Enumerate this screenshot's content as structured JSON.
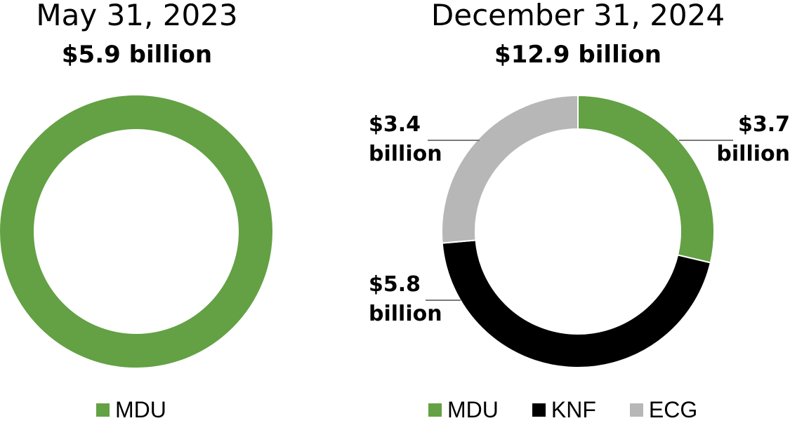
{
  "charts": {
    "left": {
      "title": "May 31, 2023",
      "total": "$5.9 billion",
      "legend": [
        {
          "label": "MDU",
          "color": "#63a144"
        }
      ]
    },
    "right": {
      "title": "December 31, 2024",
      "total": "$12.9 billion",
      "callouts": {
        "ecg": {
          "line1": "$3.4",
          "line2": "billion"
        },
        "mdu": {
          "line1": "$3.7",
          "line2": "billion"
        },
        "knf": {
          "line1": "$5.8",
          "line2": "billion"
        }
      },
      "legend": [
        {
          "label": "MDU",
          "color": "#63a144"
        },
        {
          "label": "KNF",
          "color": "#000000"
        },
        {
          "label": "ECG",
          "color": "#b7b7b7"
        }
      ]
    }
  },
  "chart_data": [
    {
      "type": "pie",
      "variant": "donut",
      "title": "May 31, 2023",
      "subtitle": "$5.9 billion",
      "categories": [
        "MDU"
      ],
      "values": [
        5.9
      ],
      "unit": "billion USD",
      "colors": [
        "#63a144"
      ],
      "legend_position": "bottom"
    },
    {
      "type": "pie",
      "variant": "donut",
      "title": "December 31, 2024",
      "subtitle": "$12.9 billion",
      "categories": [
        "MDU",
        "KNF",
        "ECG"
      ],
      "values": [
        3.7,
        5.8,
        3.4
      ],
      "unit": "billion USD",
      "colors": [
        "#63a144",
        "#000000",
        "#b7b7b7"
      ],
      "data_labels": [
        "$3.7 billion",
        "$5.8 billion",
        "$3.4 billion"
      ],
      "legend_position": "bottom"
    }
  ]
}
